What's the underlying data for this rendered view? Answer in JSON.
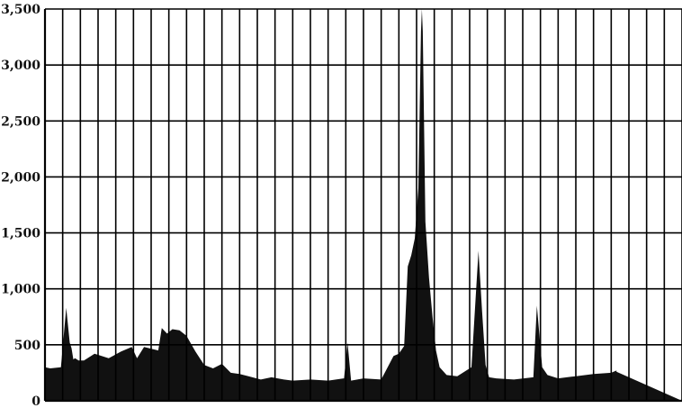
{
  "chart_data": {
    "type": "area",
    "title": "",
    "xlabel": "",
    "ylabel": "",
    "ylim": [
      0,
      3500
    ],
    "yticks": [
      0,
      500,
      1000,
      1500,
      2000,
      2500,
      3000,
      3500
    ],
    "ytick_labels": [
      "0",
      "500",
      "1,000",
      "1,500",
      "2,000",
      "2,500",
      "3,000",
      "3,500"
    ],
    "x_grid_columns": 36,
    "grid": true,
    "fill_color": "#111111",
    "grid_color": "#000000",
    "series": [
      {
        "x": [
          0,
          0.3,
          0.9,
          1.2,
          1.4,
          1.5,
          1.6,
          1.7,
          1.9,
          2.2,
          2.8,
          3.6,
          4.3,
          4.9,
          5.2,
          5.6,
          6.4,
          6.6,
          6.9,
          7.2,
          7.6,
          8.0,
          8.5,
          9.0,
          9.5,
          10.0,
          10.5,
          11.0,
          11.5,
          12.2,
          12.8,
          13.5,
          14.0,
          15.0,
          16.0,
          16.9,
          17.1,
          17.3,
          18.0,
          19.0,
          19.7,
          20.0,
          20.3,
          20.5,
          20.7,
          20.9,
          21.1,
          21.25,
          21.3,
          21.35,
          21.5,
          21.7,
          21.9,
          22.1,
          22.3,
          22.7,
          23.3,
          24.1,
          24.5,
          24.7,
          24.9,
          25.1,
          25.5,
          26.5,
          27.6,
          27.8,
          28.1,
          28.4,
          29.0,
          30.0,
          31.0,
          32.0,
          32.3,
          32.3,
          36.0
        ],
        "y": [
          300,
          290,
          300,
          830,
          520,
          470,
          370,
          380,
          360,
          360,
          420,
          380,
          440,
          480,
          380,
          480,
          450,
          650,
          600,
          640,
          630,
          580,
          440,
          320,
          290,
          330,
          250,
          240,
          220,
          190,
          210,
          190,
          180,
          190,
          180,
          200,
          520,
          180,
          200,
          190,
          400,
          420,
          490,
          1200,
          1300,
          1450,
          1900,
          3300,
          3500,
          3300,
          1600,
          1100,
          750,
          450,
          300,
          230,
          220,
          300,
          1340,
          800,
          320,
          210,
          200,
          190,
          210,
          850,
          300,
          230,
          200,
          220,
          240,
          250,
          270,
          260,
          0
        ]
      }
    ]
  }
}
